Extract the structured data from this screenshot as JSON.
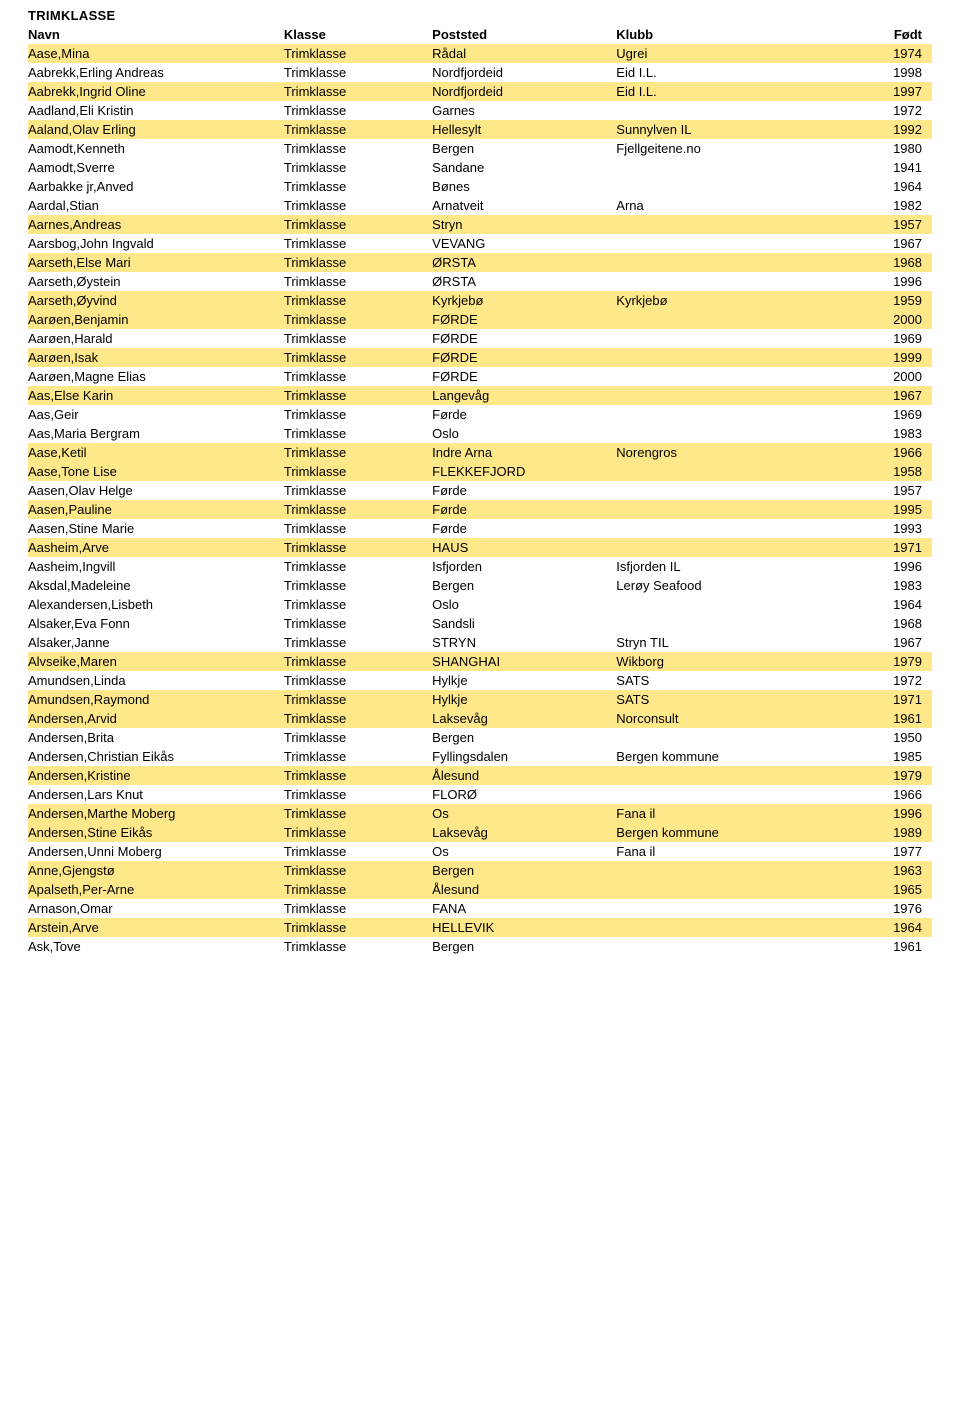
{
  "title": "TRIMKLASSE",
  "columns": {
    "navn": "Navn",
    "klasse": "Klasse",
    "poststed": "Poststed",
    "klubb": "Klubb",
    "fodt": "Født"
  },
  "colors": {
    "highlight": "#ffe88a",
    "background": "#ffffff",
    "text": "#000000"
  },
  "rows": [
    {
      "navn": "Aase,Mina",
      "klasse": "Trimklasse",
      "poststed": "Rådal",
      "klubb": "Ugrei",
      "fodt": "1974",
      "hl": true
    },
    {
      "navn": "Aabrekk,Erling Andreas",
      "klasse": "Trimklasse",
      "poststed": "Nordfjordeid",
      "klubb": "Eid I.L.",
      "fodt": "1998",
      "hl": false
    },
    {
      "navn": "Aabrekk,Ingrid Oline",
      "klasse": "Trimklasse",
      "poststed": "Nordfjordeid",
      "klubb": "Eid I.L.",
      "fodt": "1997",
      "hl": true
    },
    {
      "navn": "Aadland,Eli Kristin",
      "klasse": "Trimklasse",
      "poststed": "Garnes",
      "klubb": "",
      "fodt": "1972",
      "hl": false
    },
    {
      "navn": "Aaland,Olav Erling",
      "klasse": "Trimklasse",
      "poststed": "Hellesylt",
      "klubb": "Sunnylven IL",
      "fodt": "1992",
      "hl": true
    },
    {
      "navn": "Aamodt,Kenneth",
      "klasse": "Trimklasse",
      "poststed": "Bergen",
      "klubb": "Fjellgeitene.no",
      "fodt": "1980",
      "hl": false
    },
    {
      "navn": "Aamodt,Sverre",
      "klasse": "Trimklasse",
      "poststed": "Sandane",
      "klubb": "",
      "fodt": "1941",
      "hl": false
    },
    {
      "navn": "Aarbakke jr,Anved",
      "klasse": "Trimklasse",
      "poststed": "Bønes",
      "klubb": "",
      "fodt": "1964",
      "hl": false
    },
    {
      "navn": "Aardal,Stian",
      "klasse": "Trimklasse",
      "poststed": "Arnatveit",
      "klubb": "Arna",
      "fodt": "1982",
      "hl": false
    },
    {
      "navn": "Aarnes,Andreas",
      "klasse": "Trimklasse",
      "poststed": "Stryn",
      "klubb": "",
      "fodt": "1957",
      "hl": true
    },
    {
      "navn": "Aarsbog,John Ingvald",
      "klasse": "Trimklasse",
      "poststed": "VEVANG",
      "klubb": "",
      "fodt": "1967",
      "hl": false
    },
    {
      "navn": "Aarseth,Else Mari",
      "klasse": "Trimklasse",
      "poststed": "ØRSTA",
      "klubb": "",
      "fodt": "1968",
      "hl": true
    },
    {
      "navn": "Aarseth,Øystein",
      "klasse": "Trimklasse",
      "poststed": "ØRSTA",
      "klubb": "",
      "fodt": "1996",
      "hl": false
    },
    {
      "navn": "Aarseth,Øyvind",
      "klasse": "Trimklasse",
      "poststed": "Kyrkjebø",
      "klubb": "Kyrkjebø",
      "fodt": "1959",
      "hl": true
    },
    {
      "navn": "Aarøen,Benjamin",
      "klasse": "Trimklasse",
      "poststed": "FØRDE",
      "klubb": "",
      "fodt": "2000",
      "hl": true
    },
    {
      "navn": "Aarøen,Harald",
      "klasse": "Trimklasse",
      "poststed": "FØRDE",
      "klubb": "",
      "fodt": "1969",
      "hl": false
    },
    {
      "navn": "Aarøen,Isak",
      "klasse": "Trimklasse",
      "poststed": "FØRDE",
      "klubb": "",
      "fodt": "1999",
      "hl": true
    },
    {
      "navn": "Aarøen,Magne Elias",
      "klasse": "Trimklasse",
      "poststed": "FØRDE",
      "klubb": "",
      "fodt": "2000",
      "hl": false
    },
    {
      "navn": "Aas,Else Karin",
      "klasse": "Trimklasse",
      "poststed": "Langevåg",
      "klubb": "",
      "fodt": "1967",
      "hl": true
    },
    {
      "navn": "Aas,Geir",
      "klasse": "Trimklasse",
      "poststed": "Førde",
      "klubb": "",
      "fodt": "1969",
      "hl": false
    },
    {
      "navn": "Aas,Maria Bergram",
      "klasse": "Trimklasse",
      "poststed": "Oslo",
      "klubb": "",
      "fodt": "1983",
      "hl": false
    },
    {
      "navn": "Aase,Ketil",
      "klasse": "Trimklasse",
      "poststed": "Indre Arna",
      "klubb": "Norengros",
      "fodt": "1966",
      "hl": true
    },
    {
      "navn": "Aase,Tone Lise",
      "klasse": "Trimklasse",
      "poststed": "FLEKKEFJORD",
      "klubb": "",
      "fodt": "1958",
      "hl": true
    },
    {
      "navn": "Aasen,Olav Helge",
      "klasse": "Trimklasse",
      "poststed": "Førde",
      "klubb": "",
      "fodt": "1957",
      "hl": false
    },
    {
      "navn": "Aasen,Pauline",
      "klasse": "Trimklasse",
      "poststed": "Førde",
      "klubb": "",
      "fodt": "1995",
      "hl": true
    },
    {
      "navn": "Aasen,Stine Marie",
      "klasse": "Trimklasse",
      "poststed": "Førde",
      "klubb": "",
      "fodt": "1993",
      "hl": false
    },
    {
      "navn": "Aasheim,Arve",
      "klasse": "Trimklasse",
      "poststed": "HAUS",
      "klubb": "",
      "fodt": "1971",
      "hl": true
    },
    {
      "navn": "Aasheim,Ingvill",
      "klasse": "Trimklasse",
      "poststed": "Isfjorden",
      "klubb": "Isfjorden IL",
      "fodt": "1996",
      "hl": false
    },
    {
      "navn": "Aksdal,Madeleine",
      "klasse": "Trimklasse",
      "poststed": "Bergen",
      "klubb": "Lerøy Seafood",
      "fodt": "1983",
      "hl": false
    },
    {
      "navn": "Alexandersen,Lisbeth",
      "klasse": "Trimklasse",
      "poststed": "Oslo",
      "klubb": "",
      "fodt": "1964",
      "hl": false
    },
    {
      "navn": "Alsaker,Eva Fonn",
      "klasse": "Trimklasse",
      "poststed": "Sandsli",
      "klubb": "",
      "fodt": "1968",
      "hl": false
    },
    {
      "navn": "Alsaker,Janne",
      "klasse": "Trimklasse",
      "poststed": "STRYN",
      "klubb": "Stryn TIL",
      "fodt": "1967",
      "hl": false
    },
    {
      "navn": "Alvseike,Maren",
      "klasse": "Trimklasse",
      "poststed": "SHANGHAI",
      "klubb": "Wikborg",
      "fodt": "1979",
      "hl": true
    },
    {
      "navn": "Amundsen,Linda",
      "klasse": "Trimklasse",
      "poststed": "Hylkje",
      "klubb": "SATS",
      "fodt": "1972",
      "hl": false
    },
    {
      "navn": "Amundsen,Raymond",
      "klasse": "Trimklasse",
      "poststed": "Hylkje",
      "klubb": "SATS",
      "fodt": "1971",
      "hl": true
    },
    {
      "navn": "Andersen,Arvid",
      "klasse": "Trimklasse",
      "poststed": "Laksevåg",
      "klubb": "Norconsult",
      "fodt": "1961",
      "hl": true
    },
    {
      "navn": "Andersen,Brita",
      "klasse": "Trimklasse",
      "poststed": "Bergen",
      "klubb": "",
      "fodt": "1950",
      "hl": false
    },
    {
      "navn": "Andersen,Christian Eikås",
      "klasse": "Trimklasse",
      "poststed": "Fyllingsdalen",
      "klubb": "Bergen kommune",
      "fodt": "1985",
      "hl": false
    },
    {
      "navn": "Andersen,Kristine",
      "klasse": "Trimklasse",
      "poststed": "Ålesund",
      "klubb": "",
      "fodt": "1979",
      "hl": true
    },
    {
      "navn": "Andersen,Lars Knut",
      "klasse": "Trimklasse",
      "poststed": "FLORØ",
      "klubb": "",
      "fodt": "1966",
      "hl": false
    },
    {
      "navn": "Andersen,Marthe Moberg",
      "klasse": "Trimklasse",
      "poststed": "Os",
      "klubb": "Fana il",
      "fodt": "1996",
      "hl": true
    },
    {
      "navn": "Andersen,Stine Eikås",
      "klasse": "Trimklasse",
      "poststed": "Laksevåg",
      "klubb": "Bergen kommune",
      "fodt": "1989",
      "hl": true
    },
    {
      "navn": "Andersen,Unni Moberg",
      "klasse": "Trimklasse",
      "poststed": "Os",
      "klubb": "Fana il",
      "fodt": "1977",
      "hl": false
    },
    {
      "navn": "Anne,Gjengstø",
      "klasse": "Trimklasse",
      "poststed": "Bergen",
      "klubb": "",
      "fodt": "1963",
      "hl": true
    },
    {
      "navn": "Apalseth,Per-Arne",
      "klasse": "Trimklasse",
      "poststed": "Ålesund",
      "klubb": "",
      "fodt": "1965",
      "hl": true
    },
    {
      "navn": "Arnason,Omar",
      "klasse": "Trimklasse",
      "poststed": "FANA",
      "klubb": "",
      "fodt": "1976",
      "hl": false
    },
    {
      "navn": "Arstein,Arve",
      "klasse": "Trimklasse",
      "poststed": "HELLEVIK",
      "klubb": "",
      "fodt": "1964",
      "hl": true
    },
    {
      "navn": "Ask,Tove",
      "klasse": "Trimklasse",
      "poststed": "Bergen",
      "klubb": "",
      "fodt": "1961",
      "hl": false
    }
  ]
}
